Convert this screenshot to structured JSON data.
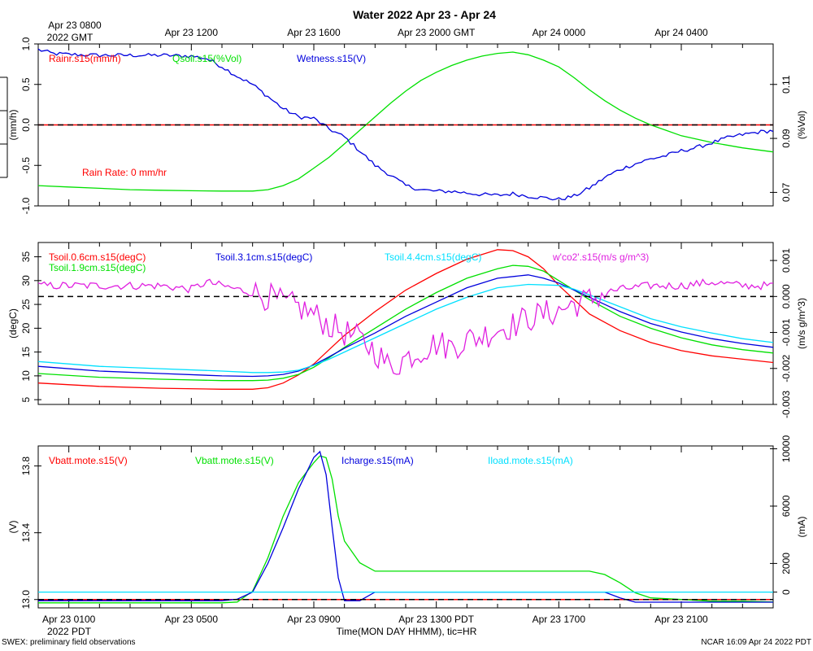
{
  "title": "Water 2022 Apr 23 - Apr 24",
  "top_axis": {
    "first_label": "Apr 23 0800",
    "first_label_2": "2022 GMT",
    "labels": [
      "Apr 23 1200",
      "Apr 23 1600",
      "Apr 23 2000 GMT",
      "Apr 24 0000",
      "Apr 24 0400"
    ]
  },
  "bottom_axis": {
    "labels": [
      "Apr 23 0100",
      "Apr 23 0500",
      "Apr 23 0900",
      "Apr 23 1300 PDT",
      "Apr 23 1700",
      "Apr 23 2100"
    ],
    "year_label": "2022 PDT",
    "xlabel": "Time(MON DAY HHMM), tic=HR"
  },
  "footer": {
    "left": "SWEX: preliminary field observations",
    "right": "NCAR 16:09 Apr 24 2022 PDT"
  },
  "annotation": "Rain Rate: 0 mm/hr",
  "colors": {
    "red": "#ff0000",
    "green": "#00e000",
    "blue": "#0000dd",
    "cyan": "#00e0ff",
    "magenta": "#e020e0",
    "black": "#000000"
  },
  "chart_data": [
    {
      "type": "line",
      "x_unit": "hours since Apr 23 0000 PDT",
      "xlim": [
        0,
        24
      ],
      "ylabel_left": "(mm/h)",
      "ylabel_right": "(%Vol)",
      "ylim_left": [
        -1.0,
        1.0
      ],
      "ylim_right": [
        0.065,
        0.125
      ],
      "yticks_left": [
        "-1.0",
        "-0.5",
        "0.0",
        "0.5",
        "1.0"
      ],
      "yticks_left_values": [
        -1.0,
        -0.5,
        0.0,
        0.5,
        1.0
      ],
      "yticks_right": [
        "0.07",
        "0.09",
        "0.11"
      ],
      "yticks_right_values": [
        0.07,
        0.09,
        0.11
      ],
      "dashed_ref": 0.0,
      "series": [
        {
          "name": "Rainr.s15(mm/h)",
          "color": "red",
          "axis": "left",
          "x": [
            0,
            24
          ],
          "y": [
            0,
            0
          ]
        },
        {
          "name": "Qsoil.s15(%Vol)",
          "color": "green",
          "axis": "right",
          "x": [
            0,
            1,
            2,
            3,
            4,
            5,
            6,
            7,
            7.5,
            8,
            8.5,
            9,
            9.5,
            10,
            10.5,
            11,
            11.5,
            12,
            12.5,
            13,
            13.5,
            14,
            14.5,
            15,
            15.5,
            16,
            16.5,
            17,
            17.5,
            18,
            18.5,
            19,
            19.5,
            20,
            20.5,
            21,
            22,
            23,
            24
          ],
          "y": [
            0.0725,
            0.072,
            0.0715,
            0.071,
            0.0708,
            0.0706,
            0.0705,
            0.0705,
            0.071,
            0.0725,
            0.075,
            0.079,
            0.083,
            0.088,
            0.093,
            0.098,
            0.103,
            0.1075,
            0.1115,
            0.1145,
            0.117,
            0.119,
            0.1205,
            0.1215,
            0.122,
            0.121,
            0.119,
            0.1165,
            0.1125,
            0.108,
            0.104,
            0.1005,
            0.0975,
            0.095,
            0.093,
            0.091,
            0.0885,
            0.0865,
            0.085
          ]
        },
        {
          "name": "Wetness.s15(V)",
          "color": "blue",
          "axis": "left",
          "x": [
            0,
            0.5,
            1,
            2,
            3,
            4,
            5,
            5.5,
            6,
            6.5,
            7,
            7.5,
            8,
            8.5,
            9,
            9.5,
            10,
            10.5,
            11,
            11.5,
            12,
            12.5,
            13,
            13.5,
            14,
            14.5,
            15,
            15.5,
            16,
            16.5,
            17,
            17.5,
            18,
            18.5,
            19,
            19.5,
            20,
            20.5,
            21,
            21.5,
            22,
            22.5,
            23,
            23.5,
            24
          ],
          "y": [
            0.93,
            0.88,
            0.87,
            0.86,
            0.86,
            0.86,
            0.85,
            0.82,
            0.72,
            0.6,
            0.5,
            0.35,
            0.2,
            0.1,
            0.08,
            -0.05,
            -0.15,
            -0.32,
            -0.5,
            -0.62,
            -0.75,
            -0.8,
            -0.82,
            -0.82,
            -0.84,
            -0.86,
            -0.87,
            -0.85,
            -0.88,
            -0.9,
            -0.92,
            -0.88,
            -0.78,
            -0.65,
            -0.55,
            -0.48,
            -0.42,
            -0.38,
            -0.32,
            -0.28,
            -0.22,
            -0.16,
            -0.12,
            -0.09,
            -0.07
          ]
        }
      ],
      "noisy_series": [
        "Wetness.s15(V)"
      ]
    },
    {
      "type": "line",
      "x_unit": "hours since Apr 23 0000 PDT",
      "xlim": [
        0,
        24
      ],
      "ylabel_left": "(degC)",
      "ylabel_right": "(m/s g/m^3)",
      "ylim_left": [
        4.0,
        38.0
      ],
      "ylim_right": [
        -0.003,
        0.0015
      ],
      "yticks_left": [
        "5",
        "10",
        "15",
        "20",
        "25",
        "30",
        "35"
      ],
      "yticks_left_values": [
        5,
        10,
        15,
        20,
        25,
        30,
        35
      ],
      "yticks_right": [
        "-0.003",
        "-0.002",
        "-0.001",
        "0.000",
        "0.001"
      ],
      "yticks_right_values": [
        -0.003,
        -0.002,
        -0.001,
        0.0,
        0.001
      ],
      "dashed_ref": 0.0,
      "series": [
        {
          "name": "Tsoil.0.6cm.s15(degC)",
          "color": "red",
          "axis": "left",
          "x": [
            0,
            2,
            4,
            6,
            7,
            7.5,
            8,
            8.5,
            9,
            9.5,
            10,
            11,
            12,
            13,
            14,
            14.5,
            15,
            15.5,
            16,
            16.5,
            17,
            17.5,
            18,
            19,
            20,
            21,
            22,
            23,
            24
          ],
          "y": [
            8.5,
            7.8,
            7.4,
            7.2,
            7.2,
            7.5,
            8.5,
            10.2,
            12.5,
            15.5,
            18.5,
            23.5,
            28,
            31.5,
            34.5,
            35.5,
            36.5,
            36.3,
            35,
            32.5,
            29,
            26,
            23,
            19.5,
            17,
            15.3,
            14.2,
            13.5,
            12.8
          ]
        },
        {
          "name": "Tsoil.1.9cm.s15(degC)",
          "color": "green",
          "axis": "left",
          "x": [
            0,
            2,
            4,
            6,
            7,
            7.5,
            8,
            8.5,
            9,
            9.5,
            10,
            11,
            12,
            13,
            14,
            15,
            15.5,
            16,
            16.5,
            17,
            17.5,
            18,
            19,
            20,
            21,
            22,
            23,
            24
          ],
          "y": [
            10.5,
            9.7,
            9.3,
            9.0,
            9.0,
            9.1,
            9.5,
            10.3,
            11.8,
            13.8,
            16,
            20,
            24,
            27.5,
            30.5,
            32.5,
            33.2,
            33,
            32,
            30,
            28,
            26,
            22.5,
            20,
            18,
            16.5,
            15.5,
            14.8
          ]
        },
        {
          "name": "Tsoil.3.1cm.s15(degC)",
          "color": "blue",
          "axis": "left",
          "x": [
            0,
            2,
            4,
            6,
            7,
            7.5,
            8,
            8.5,
            9,
            9.5,
            10,
            11,
            12,
            13,
            14,
            15,
            16,
            16.5,
            17,
            17.5,
            18,
            19,
            20,
            21,
            22,
            23,
            24
          ],
          "y": [
            12,
            11.0,
            10.5,
            10.0,
            9.9,
            10.0,
            10.3,
            11.0,
            12.3,
            14,
            15.8,
            19,
            22.5,
            25.5,
            28.5,
            30.5,
            31.2,
            30.5,
            29.5,
            28,
            26.5,
            23.5,
            21,
            19.2,
            17.8,
            16.8,
            16
          ]
        },
        {
          "name": "Tsoil.4.4cm.s15(degC)",
          "color": "cyan",
          "axis": "left",
          "x": [
            0,
            2,
            4,
            6,
            7,
            7.5,
            8,
            8.5,
            9,
            9.5,
            10,
            11,
            12,
            13,
            14,
            15,
            16,
            17,
            17.5,
            18,
            19,
            20,
            21,
            22,
            23,
            24
          ],
          "y": [
            13,
            12,
            11.5,
            11,
            10.7,
            10.7,
            10.8,
            11.2,
            12.2,
            13.5,
            15,
            18,
            21,
            24,
            26.5,
            28.5,
            29.2,
            29,
            28.2,
            27,
            24.5,
            22,
            20.3,
            19,
            17.8,
            17
          ]
        },
        {
          "name": "w'co2'.s15(m/s g/m^3)",
          "color": "magenta",
          "axis": "right",
          "x": [
            0,
            1,
            2,
            3,
            4,
            5,
            5.5,
            6,
            6.5,
            7,
            7.5,
            8,
            8.5,
            9,
            9.5,
            10,
            10.5,
            11,
            11.5,
            12,
            12.5,
            13,
            13.5,
            14,
            14.5,
            15,
            15.5,
            16,
            16.5,
            17,
            17.5,
            18,
            18.5,
            19,
            20,
            21,
            22,
            23,
            24
          ],
          "y": [
            0.0003,
            0.0003,
            0.0003,
            0.0003,
            0.0003,
            0.0002,
            0.0004,
            0.0003,
            0.0002,
            0.0001,
            0.0,
            -0.0002,
            -0.0003,
            -0.0005,
            -0.0008,
            -0.001,
            -0.0012,
            -0.0015,
            -0.002,
            -0.0017,
            -0.0015,
            -0.0013,
            -0.0014,
            -0.0012,
            -0.0011,
            -0.0009,
            -0.0008,
            -0.0006,
            -0.0005,
            -0.0004,
            -0.0002,
            -0.0001,
            0.0001,
            0.0002,
            0.0003,
            0.0003,
            0.0004,
            0.0003,
            0.0003
          ]
        }
      ],
      "noisy_series": [
        "w'co2'.s15(m/s g/m^3)"
      ]
    },
    {
      "type": "line",
      "x_unit": "hours since Apr 23 0000 PDT",
      "xlim": [
        0,
        24
      ],
      "ylabel_left": "(V)",
      "ylabel_right": "(mA)",
      "ylim_left": [
        12.95,
        13.92
      ],
      "ylim_right": [
        -1100,
        10200
      ],
      "yticks_left": [
        "13.0",
        "13.4",
        "13.8"
      ],
      "yticks_left_values": [
        13.0,
        13.4,
        13.8
      ],
      "yticks_right": [
        "0",
        "2000",
        "6000",
        "10000"
      ],
      "yticks_right_values": [
        0,
        2000,
        6000,
        10000
      ],
      "dashed_ref_left": 13.0,
      "series": [
        {
          "name": "Vbatt.mote.s15(V)",
          "color": "red",
          "axis": "left",
          "x": [
            0,
            24
          ],
          "y": [
            13.0,
            13.0
          ]
        },
        {
          "name": "Vbatt.mote.s15(V)",
          "color": "green",
          "axis": "left",
          "x": [
            0,
            2,
            4,
            6,
            6.5,
            7,
            7.5,
            8,
            8.5,
            9,
            9.2,
            9.4,
            9.6,
            9.8,
            10,
            10.5,
            11,
            12,
            13,
            14,
            15,
            16,
            17,
            18,
            18.5,
            19,
            19.5,
            20,
            21,
            22,
            23,
            24
          ],
          "y": [
            12.98,
            12.98,
            12.98,
            12.98,
            12.985,
            13.05,
            13.25,
            13.5,
            13.7,
            13.82,
            13.86,
            13.85,
            13.72,
            13.5,
            13.35,
            13.22,
            13.17,
            13.17,
            13.17,
            13.17,
            13.17,
            13.17,
            13.17,
            13.17,
            13.15,
            13.1,
            13.04,
            13.01,
            13.0,
            12.99,
            12.99,
            12.985
          ]
        },
        {
          "name": "Icharge.s15(mA)",
          "color": "blue",
          "axis": "right",
          "x": [
            0,
            2,
            4,
            6,
            6.5,
            7,
            7.5,
            8,
            8.5,
            9,
            9.2,
            9.4,
            9.6,
            9.8,
            10,
            10.5,
            11,
            11.5,
            12,
            14,
            16,
            18,
            18.5,
            19,
            19.5,
            20,
            21,
            22,
            24
          ],
          "y": [
            -600,
            -600,
            -600,
            -600,
            -500,
            0,
            2000,
            4500,
            7200,
            9400,
            9800,
            8200,
            4500,
            1000,
            -600,
            -600,
            0,
            0,
            0,
            0,
            0,
            0,
            0,
            -400,
            -700,
            -700,
            -700,
            -700,
            -700
          ]
        },
        {
          "name": "Iload.mote.s15(mA)",
          "color": "cyan",
          "axis": "right",
          "x": [
            0,
            24
          ],
          "y": [
            0,
            0
          ]
        }
      ],
      "noisy_series": []
    }
  ],
  "legends": [
    [
      {
        "text": "Rainr.s15(mm/h)",
        "color": "red",
        "row": 0,
        "col": 0
      },
      {
        "text": "Qsoil.s15(%Vol)",
        "color": "green",
        "row": 0,
        "col": 1
      },
      {
        "text": "Wetness.s15(V)",
        "color": "blue",
        "row": 0,
        "col": 2
      }
    ],
    [
      {
        "text": "Tsoil.0.6cm.s15(degC)",
        "color": "red",
        "row": 0,
        "col": 0
      },
      {
        "text": "Tsoil.1.9cm.s15(degC)",
        "color": "green",
        "row": 1,
        "col": 0
      },
      {
        "text": "Tsoil.3.1cm.s15(degC)",
        "color": "blue",
        "row": 0,
        "col": 1
      },
      {
        "text": "Tsoil.4.4cm.s15(degC)",
        "color": "cyan",
        "row": 0,
        "col": 2
      },
      {
        "text": "w'co2'.s15(m/s g/m^3)",
        "color": "magenta",
        "row": 0,
        "col": 3
      }
    ],
    [
      {
        "text": "Vbatt.mote.s15(V)",
        "color": "red",
        "row": 0,
        "col": 0
      },
      {
        "text": "Vbatt.mote.s15(V)",
        "color": "green",
        "row": 0,
        "col": 1
      },
      {
        "text": "Icharge.s15(mA)",
        "color": "blue",
        "row": 0,
        "col": 2
      },
      {
        "text": "Iload.mote.s15(mA)",
        "color": "cyan",
        "row": 0,
        "col": 3
      }
    ]
  ]
}
